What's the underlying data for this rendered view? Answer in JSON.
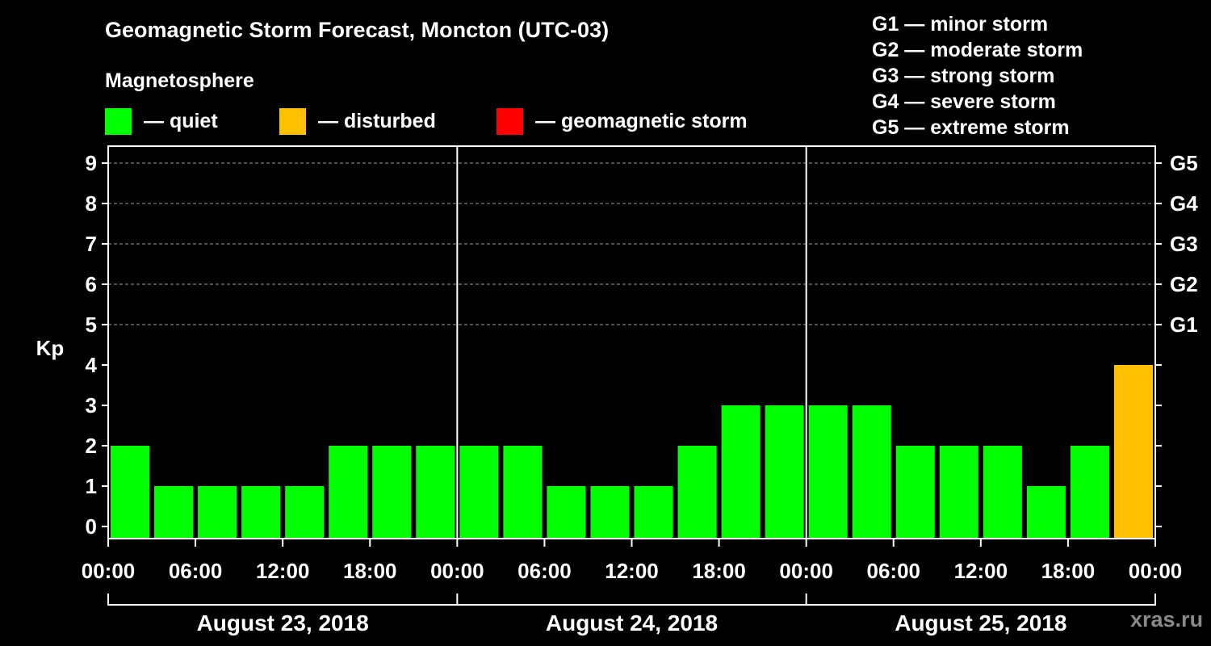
{
  "title": "Geomagnetic Storm Forecast, Moncton (UTC-03)",
  "legend": {
    "heading": "Magnetosphere",
    "items": [
      {
        "label": "— quiet",
        "color": "#00ff00"
      },
      {
        "label": "— disturbed",
        "color": "#ffc000"
      },
      {
        "label": "— geomagnetic storm",
        "color": "#ff0000"
      }
    ]
  },
  "storm_scale": [
    "G1 — minor storm",
    "G2 — moderate storm",
    "G3 — strong storm",
    "G4 — severe storm",
    "G5 — extreme storm"
  ],
  "watermark": "xras.ru",
  "chart_data": {
    "type": "bar",
    "title": "Geomagnetic Storm Forecast, Moncton (UTC-03)",
    "ylabel": "Kp",
    "xlabel": "",
    "ylim": [
      0,
      9
    ],
    "yticks": [
      "0",
      "1",
      "2",
      "3",
      "4",
      "5",
      "6",
      "7",
      "8",
      "9"
    ],
    "right_axis": [
      {
        "label": "G1",
        "kp": 5
      },
      {
        "label": "G2",
        "kp": 6
      },
      {
        "label": "G3",
        "kp": 7
      },
      {
        "label": "G4",
        "kp": 8
      },
      {
        "label": "G5",
        "kp": 9
      }
    ],
    "grid": "dashed horizontal at Kp 5-9",
    "xticks": [
      "00:00",
      "06:00",
      "12:00",
      "18:00",
      "00:00",
      "06:00",
      "12:00",
      "18:00",
      "00:00",
      "06:00",
      "12:00",
      "18:00",
      "00:00"
    ],
    "days": [
      "August 23, 2018",
      "August 24, 2018",
      "August 25, 2018"
    ],
    "interval_hours": 3,
    "values": [
      2,
      1,
      1,
      1,
      1,
      2,
      2,
      2,
      2,
      2,
      1,
      1,
      1,
      2,
      3,
      3,
      3,
      3,
      2,
      2,
      2,
      1,
      2,
      4
    ],
    "colors": {
      "quiet": "#00ff00",
      "disturbed": "#ffc000",
      "storm": "#ff0000"
    }
  }
}
